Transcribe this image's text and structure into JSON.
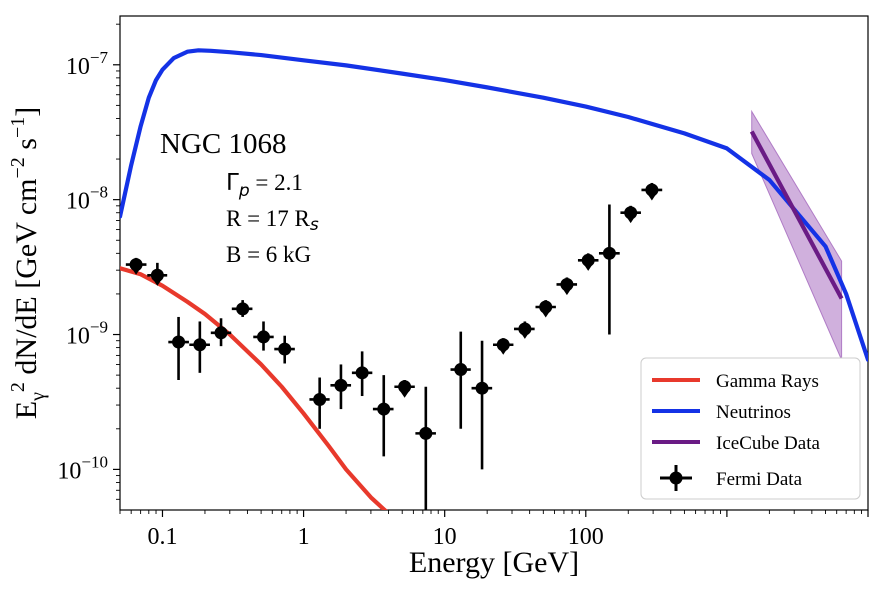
{
  "chart_data": {
    "type": "line",
    "xlabel": "Energy [GeV]",
    "ylabel_parts": {
      "e": "E",
      "gamma": "γ",
      "sup2": "2",
      "mid": " dN/dE [GeV cm",
      "supm2": "−2",
      "s": " s",
      "supm1": "−1",
      "close": "]"
    },
    "x_scale": "log",
    "y_scale": "log",
    "xlim": [
      0.05,
      10000
    ],
    "ylim": [
      5e-11,
      2.3e-07
    ],
    "x_ticks": [
      {
        "value": 0.1,
        "label": "0.1"
      },
      {
        "value": 1,
        "label": "1"
      },
      {
        "value": 10,
        "label": "10"
      },
      {
        "value": 100,
        "label": "100"
      }
    ],
    "y_ticks": [
      {
        "value": 1e-10,
        "base": "10",
        "exp": "−10"
      },
      {
        "value": 1e-09,
        "base": "10",
        "exp": "−9"
      },
      {
        "value": 1e-08,
        "base": "10",
        "exp": "−8"
      },
      {
        "value": 1e-07,
        "base": "10",
        "exp": "−7"
      }
    ],
    "annotations": {
      "source": "NGC 1068",
      "gamma_p_symbol": "Γ",
      "gamma_p_sub": "p",
      "gamma_p_value": " = 2.1",
      "radius_text": "R = 17 R",
      "radius_sub": "s",
      "field": "B = 6 kG"
    },
    "legend_position": "lower-right",
    "series": [
      {
        "name": "Gamma Rays",
        "kind": "line",
        "color": "#e8392c",
        "x": [
          0.05,
          0.07,
          0.1,
          0.15,
          0.2,
          0.3,
          0.5,
          0.7,
          1.0,
          1.5,
          2.0,
          3.0,
          4.0
        ],
        "y": [
          3.1e-09,
          2.8e-09,
          2.3e-09,
          1.75e-09,
          1.42e-09,
          1e-09,
          6e-10,
          4.1e-10,
          2.6e-10,
          1.5e-10,
          1e-10,
          6.2e-11,
          4.7e-11
        ]
      },
      {
        "name": "Neutrinos",
        "kind": "line",
        "color": "#1432e6",
        "x": [
          0.05,
          0.06,
          0.07,
          0.08,
          0.09,
          0.1,
          0.12,
          0.15,
          0.18,
          0.22,
          0.3,
          0.5,
          1,
          2,
          5,
          10,
          20,
          50,
          100,
          200,
          500,
          1000,
          2000,
          5000,
          7000,
          10000
        ],
        "y": [
          7.5e-09,
          1.8e-08,
          3.5e-08,
          5.7e-08,
          7.7e-08,
          9.2e-08,
          1.12e-07,
          1.25e-07,
          1.28e-07,
          1.27e-07,
          1.24e-07,
          1.18e-07,
          1.08e-07,
          9.9e-08,
          8.6e-08,
          7.7e-08,
          6.8e-08,
          5.7e-08,
          4.9e-08,
          4.1e-08,
          3.1e-08,
          2.4e-08,
          1.4e-08,
          4.5e-09,
          2e-09,
          6.5e-10
        ]
      },
      {
        "name": "IceCube Data",
        "kind": "band",
        "color": "#6a1b85",
        "band_color": "#b07cc6",
        "x": [
          1500,
          6500
        ],
        "y": [
          3.2e-08,
          1.85e-09
        ],
        "upper": [
          4.5e-08,
          3.5e-09
        ],
        "lower": [
          2.2e-08,
          6.5e-10
        ]
      },
      {
        "name": "Fermi Data",
        "kind": "errorbar",
        "color": "#000000",
        "points": [
          {
            "x": 0.065,
            "y": 3.3e-09,
            "lo": 2.9e-09,
            "hi": 3.7e-09,
            "xlo": 0.055,
            "xhi": 0.077,
            "ul": true
          },
          {
            "x": 0.092,
            "y": 2.75e-09,
            "lo": 2.4e-09,
            "hi": 3.4e-09,
            "xlo": 0.078,
            "xhi": 0.108,
            "ul": true
          },
          {
            "x": 0.13,
            "y": 8.8e-10,
            "lo": 4.6e-10,
            "hi": 1.35e-09,
            "xlo": 0.11,
            "xhi": 0.154
          },
          {
            "x": 0.184,
            "y": 8.4e-10,
            "lo": 5.2e-10,
            "hi": 1.25e-09,
            "xlo": 0.155,
            "xhi": 0.217
          },
          {
            "x": 0.26,
            "y": 1.03e-09,
            "lo": 8.2e-10,
            "hi": 1.32e-09,
            "xlo": 0.22,
            "xhi": 0.307
          },
          {
            "x": 0.37,
            "y": 1.55e-09,
            "lo": 1.35e-09,
            "hi": 1.8e-09,
            "xlo": 0.31,
            "xhi": 0.434
          },
          {
            "x": 0.52,
            "y": 9.6e-10,
            "lo": 7.6e-10,
            "hi": 1.25e-09,
            "xlo": 0.44,
            "xhi": 0.614
          },
          {
            "x": 0.735,
            "y": 7.8e-10,
            "lo": 6.1e-10,
            "hi": 9.8e-10,
            "xlo": 0.62,
            "xhi": 0.867
          },
          {
            "x": 1.3,
            "y": 3.3e-10,
            "lo": 2e-10,
            "hi": 4.8e-10,
            "xlo": 1.1,
            "xhi": 1.53
          },
          {
            "x": 1.84,
            "y": 4.2e-10,
            "lo": 2.8e-10,
            "hi": 6e-10,
            "xlo": 1.55,
            "xhi": 2.17
          },
          {
            "x": 2.6,
            "y": 5.2e-10,
            "lo": 3.5e-10,
            "hi": 7.5e-10,
            "xlo": 2.2,
            "xhi": 3.07
          },
          {
            "x": 3.7,
            "y": 2.8e-10,
            "lo": 1.25e-10,
            "hi": 5e-10,
            "xlo": 3.1,
            "xhi": 4.34
          },
          {
            "x": 5.2,
            "y": 4.1e-10,
            "lo": 3.55e-10,
            "hi": 4.6e-10,
            "xlo": 4.4,
            "xhi": 6.14,
            "ul": true
          },
          {
            "x": 7.35,
            "y": 1.85e-10,
            "lo": 5e-11,
            "hi": 4.1e-10,
            "xlo": 6.2,
            "xhi": 8.67
          },
          {
            "x": 13,
            "y": 5.5e-10,
            "lo": 2e-10,
            "hi": 1.05e-09,
            "xlo": 11,
            "xhi": 15.3
          },
          {
            "x": 18.4,
            "y": 4e-10,
            "lo": 1e-10,
            "hi": 9e-10,
            "xlo": 15.5,
            "xhi": 21.7
          },
          {
            "x": 26,
            "y": 8.4e-10,
            "lo": 7.4e-10,
            "hi": 9.4e-10,
            "xlo": 22,
            "xhi": 30.7,
            "ul": true
          },
          {
            "x": 37,
            "y": 1.1e-09,
            "lo": 9.7e-10,
            "hi": 1.25e-09,
            "xlo": 31,
            "xhi": 43.4,
            "ul": true
          },
          {
            "x": 52,
            "y": 1.6e-09,
            "lo": 1.4e-09,
            "hi": 1.8e-09,
            "xlo": 44,
            "xhi": 61.4,
            "ul": true
          },
          {
            "x": 73.5,
            "y": 2.35e-09,
            "lo": 2.05e-09,
            "hi": 2.65e-09,
            "xlo": 62,
            "xhi": 86.7,
            "ul": true
          },
          {
            "x": 104,
            "y": 3.55e-09,
            "lo": 3.1e-09,
            "hi": 4e-09,
            "xlo": 88,
            "xhi": 123,
            "ul": true
          },
          {
            "x": 147,
            "y": 4e-09,
            "lo": 1e-09,
            "hi": 9.2e-09,
            "xlo": 124,
            "xhi": 174
          },
          {
            "x": 208,
            "y": 8e-09,
            "lo": 7e-09,
            "hi": 9e-09,
            "xlo": 176,
            "xhi": 246,
            "ul": true
          },
          {
            "x": 294,
            "y": 1.18e-08,
            "lo": 1.03e-08,
            "hi": 1.33e-08,
            "xlo": 248,
            "xhi": 348,
            "ul": true
          }
        ]
      }
    ]
  }
}
